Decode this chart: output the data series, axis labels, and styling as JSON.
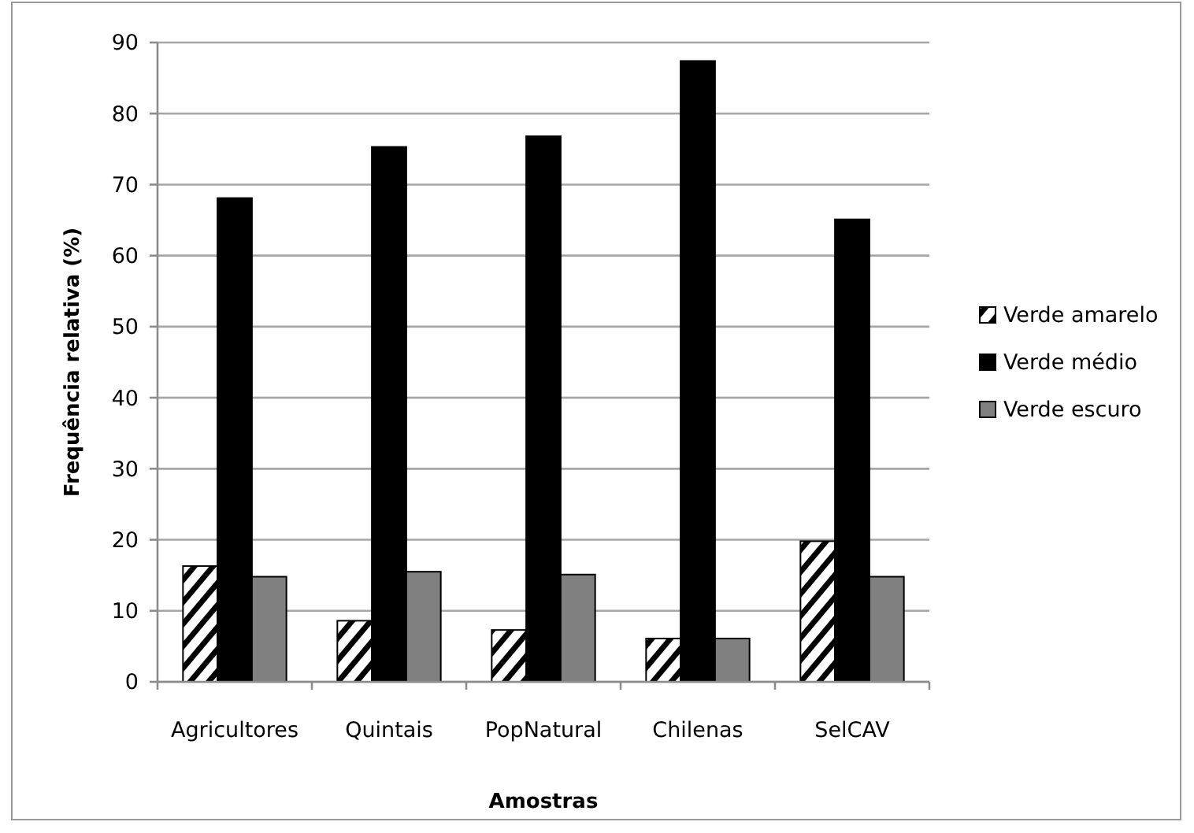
{
  "chart_data": {
    "type": "bar",
    "xlabel": "Amostras",
    "ylabel": "Frequência relativa (%)",
    "categories": [
      "Agricultores",
      "Quintais",
      "PopNatural",
      "Chilenas",
      "SelCAV"
    ],
    "series": [
      {
        "name": "Verde amarelo",
        "color": "#000000",
        "values": [
          16.3,
          8.6,
          7.3,
          6.1,
          19.8
        ]
      },
      {
        "name": "Verde médio",
        "color": "#000000",
        "values": [
          68.1,
          75.3,
          76.8,
          87.4,
          65.1
        ]
      },
      {
        "name": "Verde escuro",
        "color": "#808080",
        "values": [
          14.8,
          15.5,
          15.1,
          6.1,
          14.8
        ]
      }
    ],
    "ylim": [
      0,
      90
    ],
    "yticks": [
      0,
      10,
      20,
      30,
      40,
      50,
      60,
      70,
      80,
      90
    ],
    "grid": "y",
    "legend": "right"
  }
}
